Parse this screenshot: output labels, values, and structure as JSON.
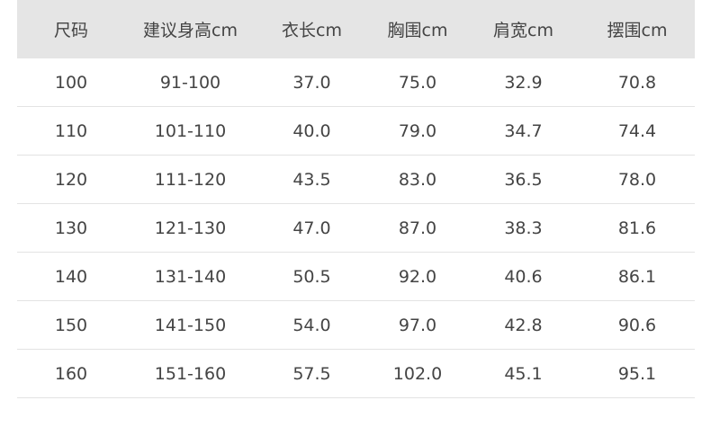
{
  "table": {
    "headers": [
      "尺码",
      "建议身高cm",
      "衣长cm",
      "胸围cm",
      "肩宽cm",
      "摆围cm"
    ],
    "rows": [
      [
        "100",
        "91-100",
        "37.0",
        "75.0",
        "32.9",
        "70.8"
      ],
      [
        "110",
        "101-110",
        "40.0",
        "79.0",
        "34.7",
        "74.4"
      ],
      [
        "120",
        "111-120",
        "43.5",
        "83.0",
        "36.5",
        "78.0"
      ],
      [
        "130",
        "121-130",
        "47.0",
        "87.0",
        "38.3",
        "81.6"
      ],
      [
        "140",
        "131-140",
        "50.5",
        "92.0",
        "40.6",
        "86.1"
      ],
      [
        "150",
        "141-150",
        "54.0",
        "97.0",
        "42.8",
        "90.6"
      ],
      [
        "160",
        "151-160",
        "57.5",
        "102.0",
        "45.1",
        "95.1"
      ]
    ]
  },
  "colors": {
    "header_bg": "#e5e5e5",
    "text": "#444444",
    "divider": "#e3e3e3"
  }
}
